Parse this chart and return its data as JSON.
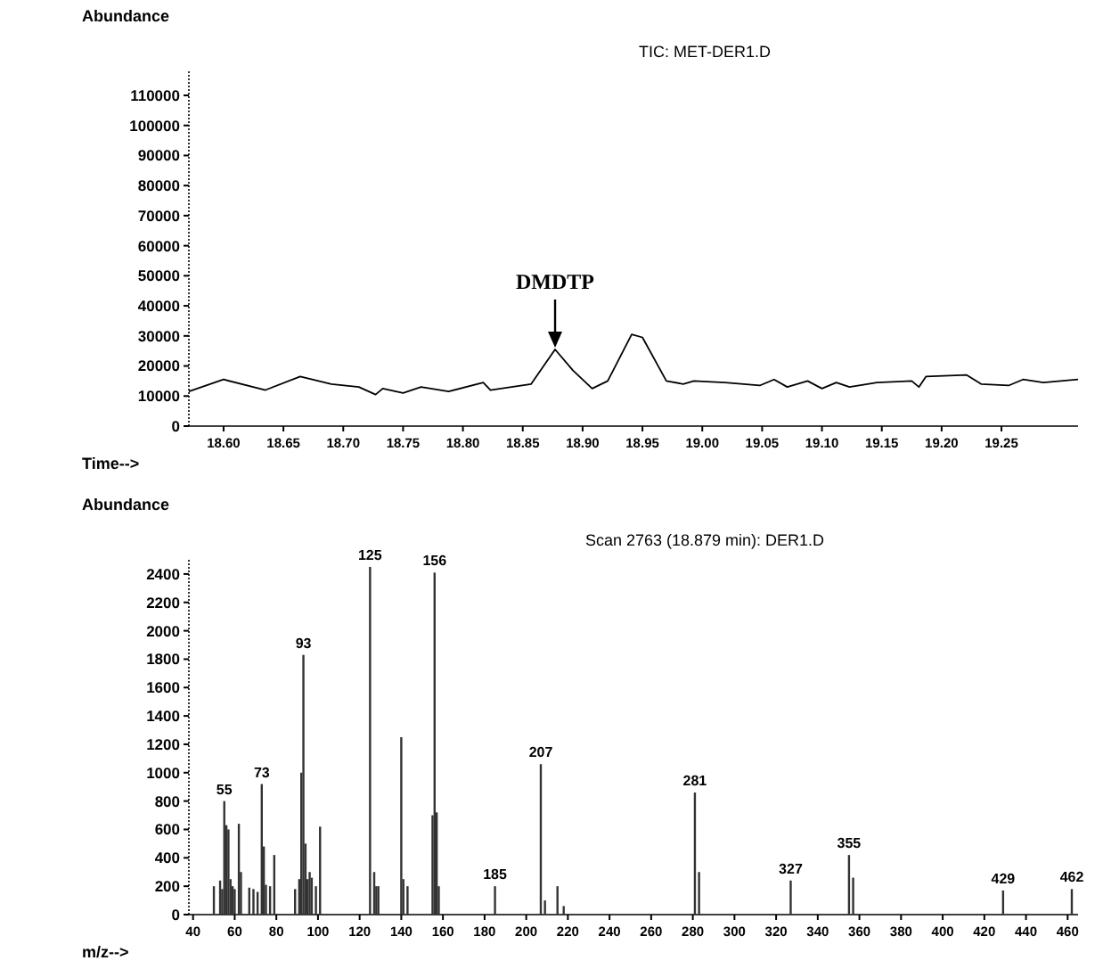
{
  "chart_data": [
    {
      "type": "line",
      "title": "TIC: MET-DER1.D",
      "ylabel": "Abundance",
      "xlabel": "Time-->",
      "color": "#000000",
      "marker": "none",
      "line_style": "solid",
      "grid": false,
      "x": [
        18.571,
        18.6,
        18.635,
        18.664,
        18.69,
        18.713,
        18.727,
        18.733,
        18.75,
        18.765,
        18.788,
        18.817,
        18.823,
        18.857,
        18.877,
        18.892,
        18.908,
        18.921,
        18.941,
        18.95,
        18.97,
        18.984,
        18.993,
        19.019,
        19.048,
        19.06,
        19.071,
        19.088,
        19.1,
        19.112,
        19.123,
        19.146,
        19.175,
        19.181,
        19.187,
        19.221,
        19.233,
        19.256,
        19.268,
        19.285,
        19.314
      ],
      "values": [
        11500,
        15500,
        12000,
        16500,
        14000,
        13000,
        10500,
        12500,
        11000,
        13000,
        11500,
        14500,
        12000,
        14000,
        25500,
        18500,
        12500,
        15000,
        30500,
        29500,
        15000,
        14000,
        15000,
        14500,
        13500,
        15500,
        13000,
        15000,
        12500,
        14500,
        13000,
        14500,
        15000,
        13000,
        16500,
        17000,
        14000,
        13500,
        15500,
        14500,
        15500
      ],
      "xlim": [
        18.571,
        19.314
      ],
      "xticks": [
        {
          "value": 18.6,
          "label": "18.60"
        },
        {
          "value": 18.65,
          "label": "18.65"
        },
        {
          "value": 18.7,
          "label": "18.70"
        },
        {
          "value": 18.75,
          "label": "18.75"
        },
        {
          "value": 18.8,
          "label": "18.80"
        },
        {
          "value": 18.85,
          "label": "18.85"
        },
        {
          "value": 18.9,
          "label": "18.90"
        },
        {
          "value": 18.95,
          "label": "18.95"
        },
        {
          "value": 19.0,
          "label": "19.00"
        },
        {
          "value": 19.05,
          "label": "19.05"
        },
        {
          "value": 19.1,
          "label": "19.10"
        },
        {
          "value": 19.15,
          "label": "19.15"
        },
        {
          "value": 19.2,
          "label": "19.20"
        },
        {
          "value": 19.25,
          "label": "19.25"
        }
      ],
      "ylim": [
        0,
        118000
      ],
      "yticks": [
        0,
        10000,
        20000,
        30000,
        40000,
        50000,
        60000,
        70000,
        80000,
        90000,
        100000,
        110000
      ],
      "annotations": [
        {
          "text": "DMDTP",
          "x": 18.877,
          "y": 25500
        }
      ]
    },
    {
      "type": "bar",
      "title": "Scan 2763 (18.879 min): DER1.D",
      "ylabel": "Abundance",
      "xlabel": "m/z-->",
      "color": "#333333",
      "grid": false,
      "x": [
        50,
        53,
        54,
        55,
        56,
        57,
        58,
        59,
        60,
        62,
        63,
        67,
        69,
        71,
        73,
        74,
        75,
        77,
        79,
        89,
        91,
        92,
        93,
        94,
        95,
        96,
        97,
        99,
        101,
        125,
        127,
        128,
        129,
        140,
        141,
        143,
        155,
        156,
        157,
        158,
        185,
        207,
        209,
        215,
        218,
        281,
        283,
        327,
        355,
        357,
        429,
        462
      ],
      "values": [
        200,
        240,
        180,
        800,
        630,
        600,
        250,
        200,
        180,
        640,
        300,
        190,
        180,
        160,
        920,
        480,
        210,
        200,
        420,
        180,
        250,
        1000,
        1830,
        500,
        250,
        300,
        260,
        200,
        620,
        2450,
        300,
        200,
        200,
        1250,
        250,
        200,
        700,
        2410,
        720,
        200,
        200,
        1060,
        100,
        200,
        60,
        860,
        300,
        240,
        420,
        260,
        170,
        180
      ],
      "xlim": [
        38,
        465
      ],
      "xticks": [
        40,
        60,
        80,
        100,
        120,
        140,
        160,
        180,
        200,
        220,
        240,
        260,
        280,
        300,
        320,
        340,
        360,
        380,
        400,
        420,
        440,
        460
      ],
      "ylim": [
        0,
        2500
      ],
      "yticks": [
        0,
        200,
        400,
        600,
        800,
        1000,
        1200,
        1400,
        1600,
        1800,
        2000,
        2200,
        2400
      ],
      "annotations": [
        {
          "text": "55",
          "x": 55,
          "y": 800
        },
        {
          "text": "73",
          "x": 73,
          "y": 920
        },
        {
          "text": "93",
          "x": 93,
          "y": 1830
        },
        {
          "text": "125",
          "x": 125,
          "y": 2450
        },
        {
          "text": "156",
          "x": 156,
          "y": 2410
        },
        {
          "text": "185",
          "x": 185,
          "y": 200
        },
        {
          "text": "207",
          "x": 207,
          "y": 1060
        },
        {
          "text": "281",
          "x": 281,
          "y": 860
        },
        {
          "text": "327",
          "x": 327,
          "y": 240
        },
        {
          "text": "355",
          "x": 355,
          "y": 420
        },
        {
          "text": "429",
          "x": 429,
          "y": 170
        },
        {
          "text": "462",
          "x": 462,
          "y": 180
        }
      ]
    }
  ]
}
